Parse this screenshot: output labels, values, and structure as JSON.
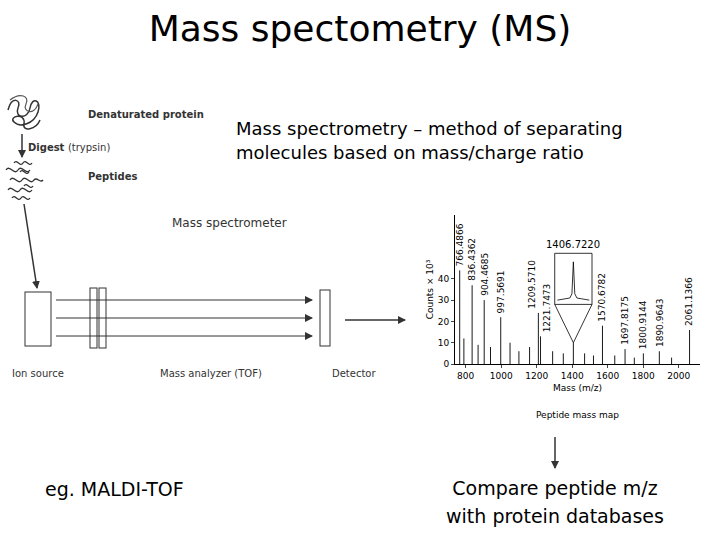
{
  "title": "Mass spectometry (MS)",
  "definition": [
    "Mass spectrometry – method of separating",
    "molecules based on mass/charge ratio"
  ],
  "diagram": {
    "denatured": "Denaturated protein",
    "digest": "Digest",
    "enzyme": "(trypsin)",
    "peptides": "Peptides",
    "instrument": "Mass spectrometer",
    "components": [
      "Ion source",
      "Mass analyzer (TOF)",
      "Detector"
    ]
  },
  "example": "eg. MALDI-TOF",
  "conclusion": [
    "Compare peptide m/z",
    "with protein databases"
  ],
  "chart_data": {
    "type": "stem",
    "caption": "Peptide mass map",
    "x_label": "Mass (m/z)",
    "y_label": "Counts × 10³",
    "xlim": [
      740,
      2120
    ],
    "xticks": [
      800,
      1000,
      1200,
      1400,
      1600,
      1800,
      2000
    ],
    "ylim": [
      0,
      70
    ],
    "yticks": [
      0,
      10,
      20,
      30,
      40
    ],
    "x": [
      766.4866,
      790,
      836.4362,
      870,
      904.4685,
      940,
      997.5691,
      1050,
      1100,
      1160,
      1209.571,
      1221.7473,
      1290,
      1350,
      1406.722,
      1470,
      1520,
      1570.6782,
      1640,
      1697.8175,
      1750,
      1800.9144,
      1890.9643,
      1960,
      2061.1366
    ],
    "values": [
      44,
      12,
      37,
      9,
      30,
      8,
      22,
      10,
      6,
      8,
      24,
      13,
      6,
      5,
      10,
      5,
      4,
      18,
      4,
      7,
      3,
      5,
      6,
      3,
      16
    ],
    "labels": [
      "766.4866",
      null,
      "836.4362",
      null,
      "904.4685",
      null,
      "997.5691",
      null,
      null,
      null,
      "1209.5710",
      "1221.7473",
      null,
      null,
      "1406.7220",
      null,
      null,
      "1570.6782",
      null,
      "1697.8175",
      null,
      "1800.9144",
      "1890.9643",
      null,
      "2061.1366"
    ],
    "zoom_label": "1406.7220",
    "color": "#000000"
  }
}
